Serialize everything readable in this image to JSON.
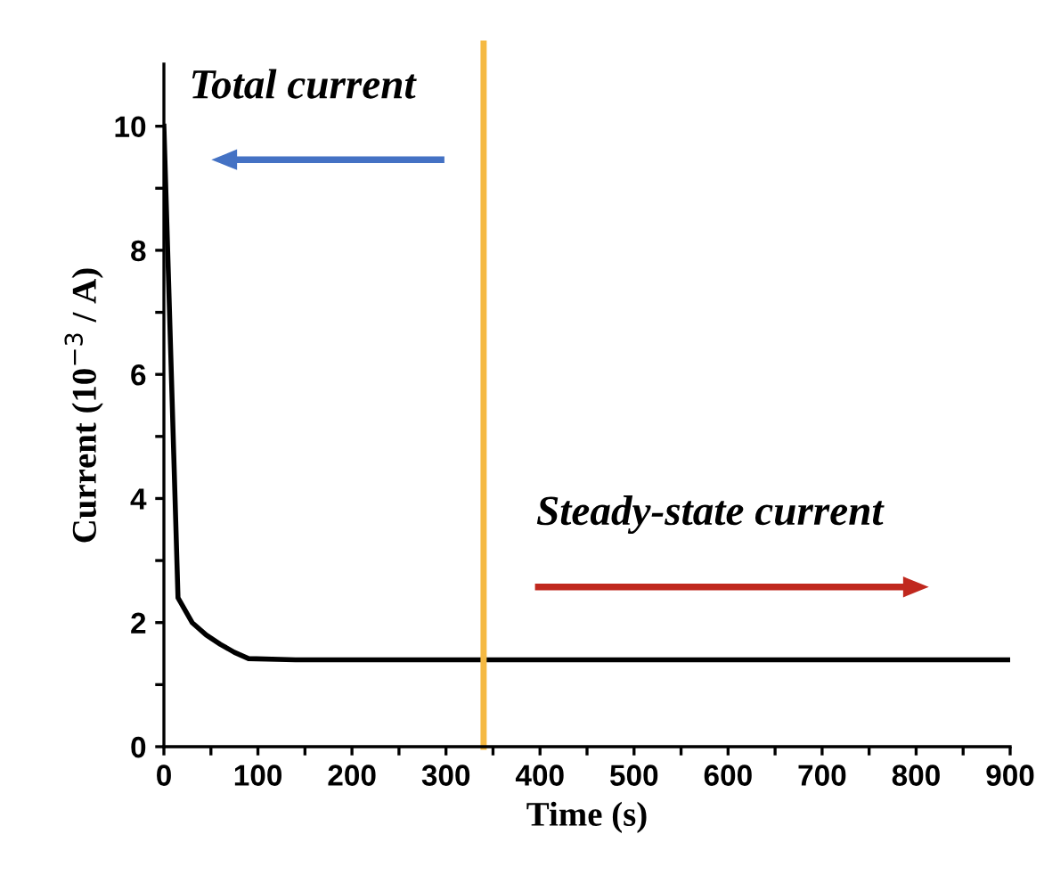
{
  "chart_data": {
    "type": "line",
    "xlabel": "Time (s)",
    "ylabel": "Current (10$^{−3}$ / A)",
    "annotations": [
      "Total current",
      "Steady-state current"
    ],
    "series": [
      {
        "color": "#000000",
        "x": [
          0,
          5,
          15,
          30,
          45,
          60,
          75,
          90,
          140,
          200,
          300,
          400,
          500,
          600,
          700,
          800,
          900
        ],
        "values": [
          10.0,
          7.5,
          2.4,
          2.0,
          1.8,
          1.65,
          1.52,
          1.42,
          1.4,
          1.4,
          1.4,
          1.4,
          1.4,
          1.4,
          1.4,
          1.4,
          1.4
        ]
      }
    ],
    "ref_lines": [
      {
        "axis": "x",
        "value": 340,
        "color": "#f5b942",
        "line_style": "solid"
      }
    ],
    "xlim": [
      0,
      900
    ],
    "ylim": [
      0,
      11
    ],
    "xticks": [
      0,
      {
        "value": 50,
        "label": null
      },
      100,
      {
        "value": 150,
        "label": null
      },
      200,
      {
        "value": 250,
        "label": null
      },
      300,
      {
        "value": 350,
        "label": null
      },
      400,
      {
        "value": 450,
        "label": null
      },
      500,
      {
        "value": 550,
        "label": null
      },
      600,
      {
        "value": 650,
        "label": null
      },
      700,
      {
        "value": 750,
        "label": null
      },
      800,
      {
        "value": 850,
        "label": null
      },
      900
    ],
    "yticks": [
      0,
      {
        "value": 1,
        "label": null
      },
      2,
      {
        "value": 3,
        "label": null
      },
      4,
      {
        "value": 5,
        "label": null
      },
      6,
      {
        "value": 7,
        "label": null
      },
      8,
      {
        "value": 9,
        "label": null
      },
      10
    ],
    "grid": false,
    "legend": false,
    "marker": "none",
    "line_style": "solid"
  }
}
